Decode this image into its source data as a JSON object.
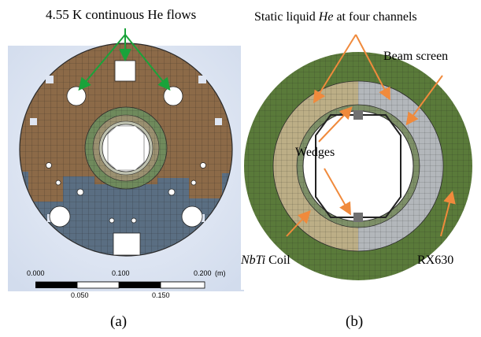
{
  "panel_a": {
    "annotation": "4.55 K continuous He flows",
    "caption": "(a)",
    "scale_bar": {
      "top_ticks": [
        "0.000",
        "0.100",
        "0.200"
      ],
      "unit": "(m)",
      "bottom_ticks": [
        "0.050",
        "0.150"
      ]
    }
  },
  "panel_b": {
    "annotation_prefix": "Static liquid ",
    "annotation_italic": "He",
    "annotation_suffix": " at four channels",
    "beam_screen": "Beam screen",
    "wedges": "Wedges",
    "coil_italic": "NbTi",
    "coil_suffix": " Coil",
    "collar": "RX630",
    "caption": "(b)"
  },
  "colors": {
    "arrow_green": "#1aa33a",
    "arrow_orange": "#f08a3c",
    "collar_green": "#5a7a3a",
    "upper_mesh": "#8c6a48",
    "lower_mesh": "#5a6e82"
  }
}
